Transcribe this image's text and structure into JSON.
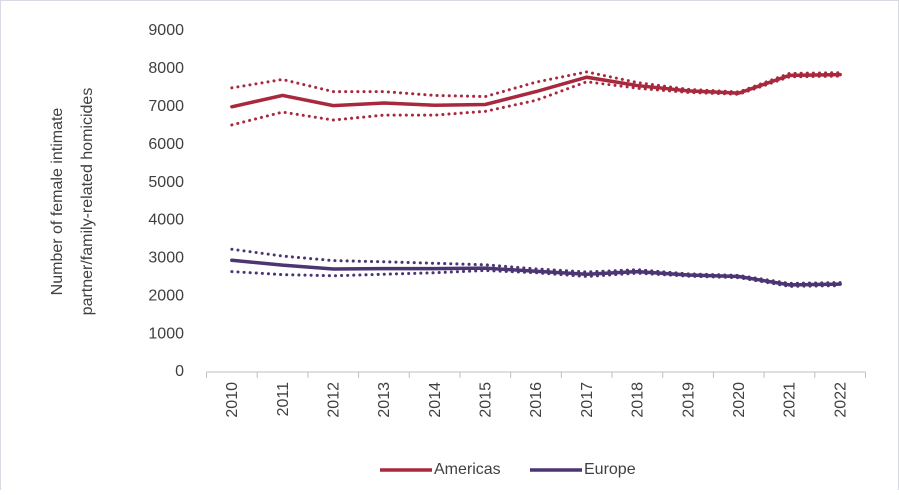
{
  "chart_data": {
    "type": "line",
    "y_label": [
      "Number of female intimate",
      "partner/family-related homicides"
    ],
    "categories": [
      "2010",
      "2011",
      "2012",
      "2013",
      "2014",
      "2015",
      "2016",
      "2017",
      "2018",
      "2019",
      "2020",
      "2021",
      "2022"
    ],
    "series": [
      {
        "name": "Americas",
        "color": "#a8283d",
        "values": [
          7000,
          7300,
          7030,
          7100,
          7040,
          7060,
          7400,
          7780,
          7560,
          7420,
          7360,
          7830,
          7850
        ],
        "upper": [
          7500,
          7720,
          7400,
          7400,
          7300,
          7270,
          7650,
          7920,
          7640,
          7460,
          7390,
          7880,
          7900
        ],
        "lower": [
          6520,
          6860,
          6650,
          6780,
          6780,
          6880,
          7170,
          7660,
          7490,
          7380,
          7330,
          7790,
          7810
        ]
      },
      {
        "name": "Europe",
        "color": "#4b3572",
        "values": [
          2950,
          2820,
          2720,
          2730,
          2730,
          2740,
          2660,
          2580,
          2650,
          2560,
          2520,
          2300,
          2320
        ],
        "upper": [
          3240,
          3060,
          2940,
          2910,
          2870,
          2830,
          2720,
          2640,
          2700,
          2590,
          2550,
          2340,
          2360
        ],
        "lower": [
          2650,
          2570,
          2540,
          2580,
          2620,
          2680,
          2620,
          2520,
          2610,
          2530,
          2490,
          2260,
          2280
        ]
      }
    ],
    "ylim": [
      0,
      9000
    ],
    "yticks": [
      0,
      1000,
      2000,
      3000,
      4000,
      5000,
      6000,
      7000,
      8000,
      9000
    ],
    "grid": false,
    "legend": "bottom"
  }
}
